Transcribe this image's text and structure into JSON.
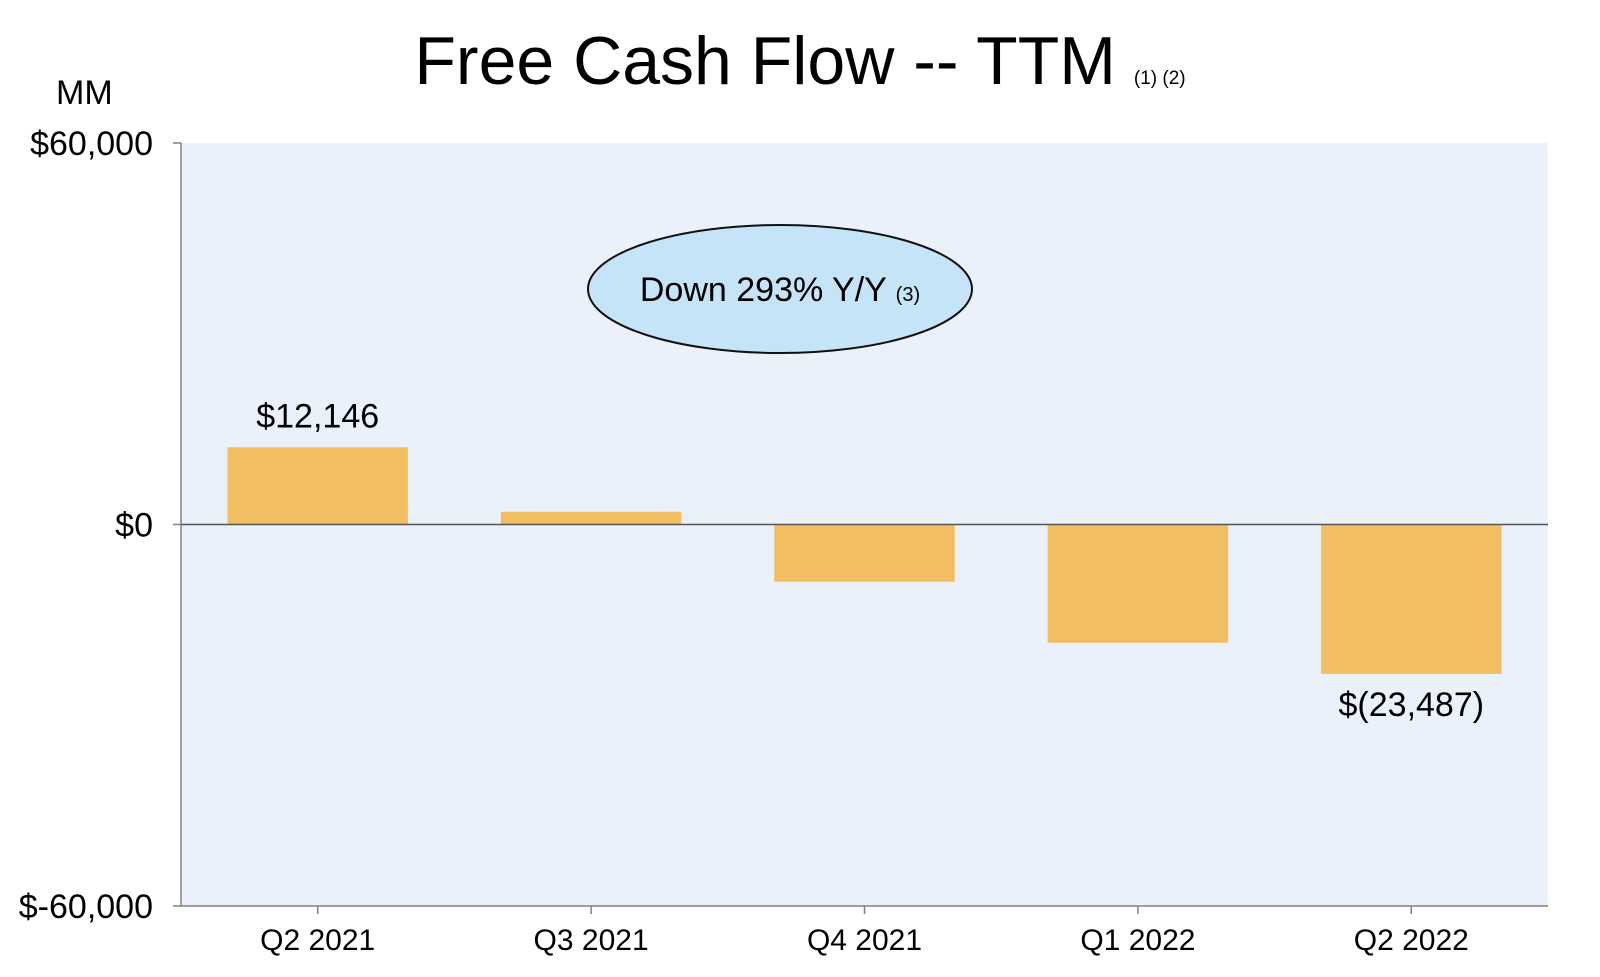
{
  "chart_data": {
    "type": "bar",
    "title": "Free Cash Flow -- TTM",
    "title_footnote": "(1) (2)",
    "unit_label": "MM",
    "categories": [
      "Q2 2021",
      "Q3 2021",
      "Q4 2021",
      "Q1 2022",
      "Q2 2022"
    ],
    "values": [
      12146,
      2000,
      -9000,
      -18600,
      -23487
    ],
    "data_labels": [
      "$12,146",
      "",
      "",
      "",
      "$(23,487)"
    ],
    "y_ticks": [
      {
        "value": 60000,
        "label": "$60,000"
      },
      {
        "value": 0,
        "label": "$0"
      },
      {
        "value": -60000,
        "label": "$-60,000"
      }
    ],
    "ylim": [
      -60000,
      60000
    ],
    "annotation": {
      "text": "Down 293% Y/Y",
      "footnote": "(3)"
    },
    "grid": false,
    "legend": "none",
    "colors": {
      "bar": "#F2BE62",
      "plot_background": "#EAF1FB",
      "annotation_fill": "#C5E4F8",
      "axis": "#808080",
      "zero_line": "#555555"
    }
  }
}
